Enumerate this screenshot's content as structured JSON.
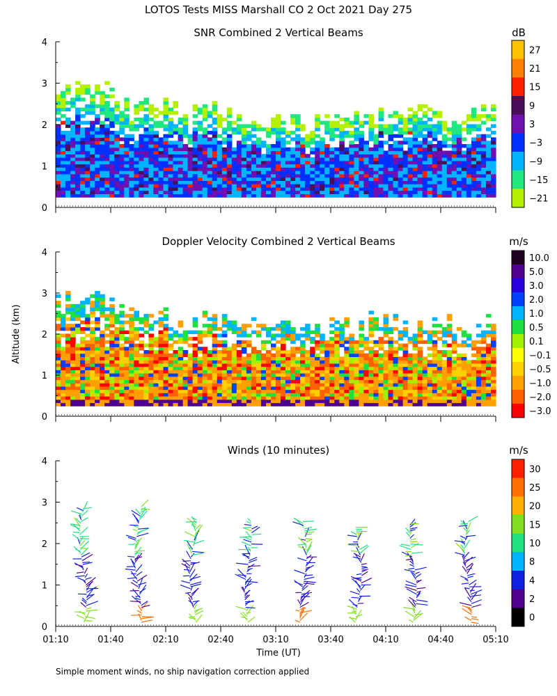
{
  "page": {
    "title": "LOTOS Tests MISS Marshall CO   2 Oct 2021 Day 275",
    "footnote": "Simple moment winds, no ship navigation correction applied"
  },
  "chart_data": [
    {
      "type": "heatmap",
      "title": "SNR Combined 2 Vertical Beams",
      "ylim": [
        0,
        4
      ],
      "yticks": [
        "0",
        "1",
        "2",
        "3",
        "4"
      ],
      "ylabel": "",
      "colorbar": {
        "unit": "dB",
        "labels": [
          "27",
          "21",
          "15",
          "9",
          "3",
          "−3",
          "−9",
          "−15",
          "−21"
        ],
        "colors": [
          "#ffc000",
          "#ff8000",
          "#ff2000",
          "#4a0f5a",
          "#7010b0",
          "#0030ff",
          "#00b4ff",
          "#20e880",
          "#b4f000"
        ]
      },
      "field": {
        "base_km": 0.25,
        "top_km": [
          2.9,
          2.5,
          2.3,
          2.1,
          2.0,
          2.2,
          2.3,
          2.2
        ],
        "dominant": "blue / cyan with green-yellow upper edge"
      }
    },
    {
      "type": "heatmap",
      "title": "Doppler Velocity Combined 2 Vertical Beams",
      "ylim": [
        0,
        4
      ],
      "yticks": [
        "0",
        "1",
        "2",
        "3",
        "4"
      ],
      "ylabel": "Altitude (km)",
      "colorbar": {
        "unit": "m/s",
        "labels": [
          "10.0",
          "5.0",
          "3.0",
          "2.0",
          "1.0",
          "0.5",
          "0.1",
          "−0.1",
          "−0.5",
          "−1.0",
          "−2.0",
          "−3.0"
        ],
        "colors": [
          "#200020",
          "#500090",
          "#2a00e0",
          "#0040ff",
          "#00b4ff",
          "#20e040",
          "#a0f000",
          "#ffff00",
          "#ffd000",
          "#ffa000",
          "#ff6000",
          "#ff0000"
        ]
      },
      "field": {
        "base_km": 0.25,
        "top_km": [
          2.8,
          2.6,
          2.3,
          2.2,
          2.2,
          2.3,
          2.3,
          2.2
        ],
        "dominant": "orange / yellow convective region below 2 km"
      }
    },
    {
      "type": "scatter",
      "title": "Winds (10 minutes)",
      "xlabel": "Time (UT)",
      "xticks": [
        "01:10",
        "01:40",
        "02:10",
        "02:40",
        "03:10",
        "03:40",
        "04:10",
        "04:40",
        "05:10"
      ],
      "xlim_minutes": [
        70,
        310
      ],
      "ylim": [
        0,
        4
      ],
      "yticks": [
        "0",
        "1",
        "2",
        "3",
        "4"
      ],
      "colorbar": {
        "unit": "m/s",
        "labels": [
          "30",
          "25",
          "20",
          "15",
          "10",
          "8",
          "4",
          "2",
          "0"
        ],
        "colors": [
          "#ff2000",
          "#ff7000",
          "#ffb000",
          "#80e020",
          "#20e080",
          "#00b4ff",
          "#1020e0",
          "#500090",
          "#000000"
        ]
      },
      "profiles": [
        {
          "time_min": 85,
          "top_km": 2.85
        },
        {
          "time_min": 115,
          "top_km": 2.9
        },
        {
          "time_min": 145,
          "top_km": 2.6
        },
        {
          "time_min": 175,
          "top_km": 2.55
        },
        {
          "time_min": 205,
          "top_km": 2.55
        },
        {
          "time_min": 235,
          "top_km": 2.4
        },
        {
          "time_min": 265,
          "top_km": 2.5
        },
        {
          "time_min": 295,
          "top_km": 2.55
        }
      ]
    }
  ]
}
